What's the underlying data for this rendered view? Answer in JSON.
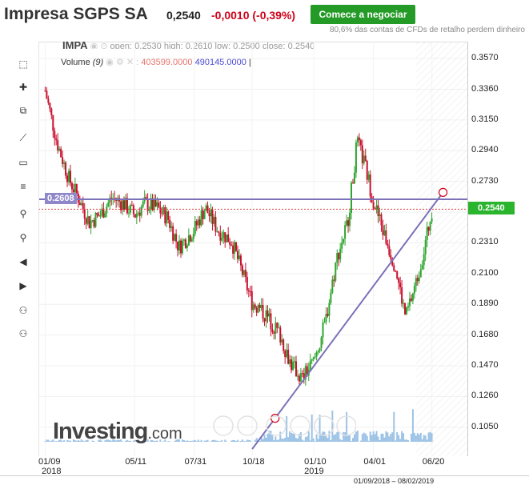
{
  "header": {
    "title": "Impresa SGPS SA",
    "price": "0,2540",
    "change": "-0,0010 (-0,39%)",
    "cta_label": "Comece a negociar",
    "disclaimer": "80,6% das contas de CFDs de retalho perdem dinheiro"
  },
  "legend": {
    "symbol": "IMPA",
    "open_label": "open:",
    "open_value": "0.2530",
    "high_label": "high:",
    "high_value": "0.2610",
    "low_label": "low:",
    "low_value": "0.2500",
    "close_label": "close:",
    "close_value": "0.2540",
    "volume_label": "Volume",
    "volume_period": "(9)",
    "volume_value_1": "403599.0000",
    "volume_value_2": "490145.0000",
    "volume_cursor": "|"
  },
  "toolbar": {
    "tools": [
      "cursor-icon",
      "crosshair-icon",
      "copy-icon",
      "line-icon",
      "rectangle-icon",
      "fib-icon",
      "zoom-in-icon",
      "zoom-out-icon",
      "scroll-left-icon",
      "scroll-right-icon",
      "add-person-icon",
      "magnet-icon"
    ]
  },
  "price_badges": {
    "line_label": "0.2608",
    "current_label": "0.2540"
  },
  "watermark": {
    "brand": "Investing",
    "suffix": ".com"
  },
  "date_range": "01/09/2018 – 08/02/2019",
  "colors": {
    "up": "#2ea52e",
    "down": "#c8102e",
    "trendline": "#7b72b8",
    "badge_current": "#2bb52f",
    "badge_line": "#8e87c9",
    "volume": "#9dc3e6"
  },
  "chart_data": {
    "type": "candlestick",
    "title": "",
    "y_ticks": [
      "0.3570",
      "0.3360",
      "0.3150",
      "0.2940",
      "0.2730",
      "0.2520",
      "0.2310",
      "0.2100",
      "0.1890",
      "0.1680",
      "0.1470",
      "0.1260",
      "0.1050"
    ],
    "x_ticks": [
      "01/09",
      "05/11",
      "07/31",
      "10/18",
      "01/10",
      "04/01",
      "06/20"
    ],
    "x_year_labels": [
      "2018",
      "2019"
    ],
    "ylim": [
      0.095,
      0.362
    ],
    "close_series": [
      {
        "x": "2018-01-09",
        "y": 0.335
      },
      {
        "x": "2018-01-25",
        "y": 0.3
      },
      {
        "x": "2018-02-10",
        "y": 0.275
      },
      {
        "x": "2018-02-25",
        "y": 0.26
      },
      {
        "x": "2018-03-10",
        "y": 0.245
      },
      {
        "x": "2018-03-25",
        "y": 0.25
      },
      {
        "x": "2018-04-10",
        "y": 0.262
      },
      {
        "x": "2018-04-25",
        "y": 0.258
      },
      {
        "x": "2018-05-11",
        "y": 0.25
      },
      {
        "x": "2018-05-25",
        "y": 0.258
      },
      {
        "x": "2018-06-10",
        "y": 0.255
      },
      {
        "x": "2018-06-25",
        "y": 0.248
      },
      {
        "x": "2018-07-10",
        "y": 0.228
      },
      {
        "x": "2018-07-31",
        "y": 0.24
      },
      {
        "x": "2018-08-15",
        "y": 0.255
      },
      {
        "x": "2018-09-01",
        "y": 0.24
      },
      {
        "x": "2018-09-20",
        "y": 0.232
      },
      {
        "x": "2018-10-05",
        "y": 0.21
      },
      {
        "x": "2018-10-18",
        "y": 0.19
      },
      {
        "x": "2018-11-05",
        "y": 0.182
      },
      {
        "x": "2018-11-25",
        "y": 0.168
      },
      {
        "x": "2018-12-10",
        "y": 0.148
      },
      {
        "x": "2018-12-25",
        "y": 0.138
      },
      {
        "x": "2019-01-10",
        "y": 0.15
      },
      {
        "x": "2019-01-25",
        "y": 0.175
      },
      {
        "x": "2019-02-10",
        "y": 0.22
      },
      {
        "x": "2019-02-25",
        "y": 0.245
      },
      {
        "x": "2019-03-10",
        "y": 0.3
      },
      {
        "x": "2019-03-20",
        "y": 0.285
      },
      {
        "x": "2019-04-01",
        "y": 0.26
      },
      {
        "x": "2019-04-15",
        "y": 0.238
      },
      {
        "x": "2019-05-01",
        "y": 0.215
      },
      {
        "x": "2019-05-15",
        "y": 0.18
      },
      {
        "x": "2019-05-30",
        "y": 0.205
      },
      {
        "x": "2019-06-10",
        "y": 0.228
      },
      {
        "x": "2019-06-20",
        "y": 0.254
      }
    ],
    "horizontal_line": 0.2608,
    "current_price_line": 0.254,
    "trendline": [
      {
        "x": "2018-10-18",
        "y": 0.09
      },
      {
        "x": "2019-07-05",
        "y": 0.2655
      }
    ],
    "grid": true,
    "legend": "top-left"
  }
}
